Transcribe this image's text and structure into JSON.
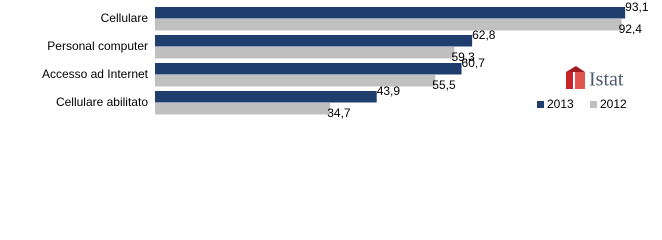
{
  "chart_data": {
    "type": "hbar",
    "categories": [
      "Cellulare",
      "Personal computer",
      "Accesso ad Internet",
      "Cellulare abilitato"
    ],
    "series": [
      {
        "name": "2013",
        "color": "#1f3e6e",
        "values": [
          93.1,
          62.8,
          60.7,
          43.9
        ],
        "value_labels": [
          "93,1",
          "62,8",
          "60,7",
          "43,9"
        ]
      },
      {
        "name": "2012",
        "color": "#c0c0c0",
        "values": [
          92.4,
          59.3,
          55.5,
          34.7
        ],
        "value_labels": [
          "92,4",
          "59,3",
          "55,5",
          "34,7"
        ]
      }
    ],
    "xlim": [
      0,
      100
    ],
    "logo": "Istat"
  }
}
